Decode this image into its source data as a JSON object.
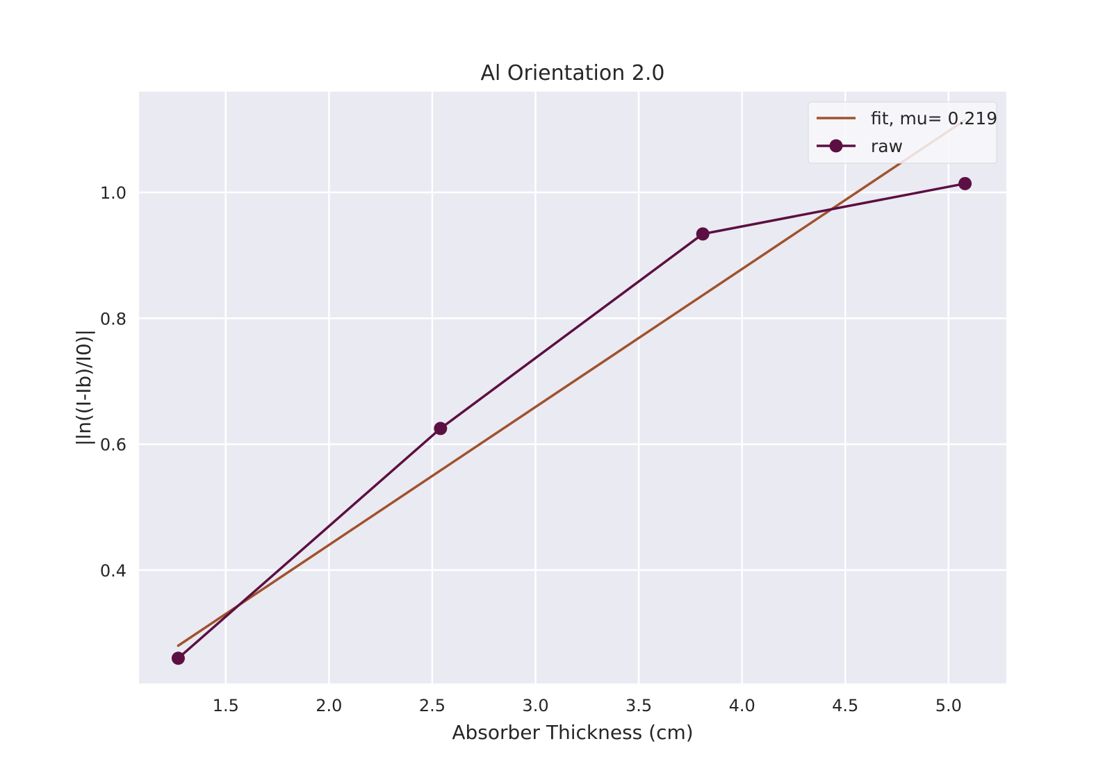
{
  "chart_data": {
    "type": "line",
    "title": "Al Orientation 2.0",
    "xlabel": "Absorber Thickness (cm)",
    "ylabel": "|ln((I-Ib)/I0)|",
    "xlim": [
      1.08,
      5.28
    ],
    "ylim": [
      0.22,
      1.16
    ],
    "xticks": [
      1.5,
      2.0,
      2.5,
      3.0,
      3.5,
      4.0,
      4.5,
      5.0
    ],
    "xtick_labels": [
      "1.5",
      "2.0",
      "2.5",
      "3.0",
      "3.5",
      "4.0",
      "4.5",
      "5.0"
    ],
    "yticks": [
      0.4,
      0.6,
      0.8,
      1.0
    ],
    "ytick_labels": [
      "0.4",
      "0.6",
      "0.8",
      "1.0"
    ],
    "grid": true,
    "legend_position": "upper-right",
    "series": [
      {
        "name": "fit, mu= 0.219",
        "color": "#a0522d",
        "marker": "none",
        "x": [
          1.27,
          5.08
        ],
        "y": [
          0.28,
          1.115
        ]
      },
      {
        "name": "raw",
        "color": "#5c0f42",
        "marker": "circle",
        "x": [
          1.27,
          2.54,
          3.81,
          5.08
        ],
        "y": [
          0.26,
          0.625,
          0.934,
          1.014
        ]
      }
    ]
  }
}
